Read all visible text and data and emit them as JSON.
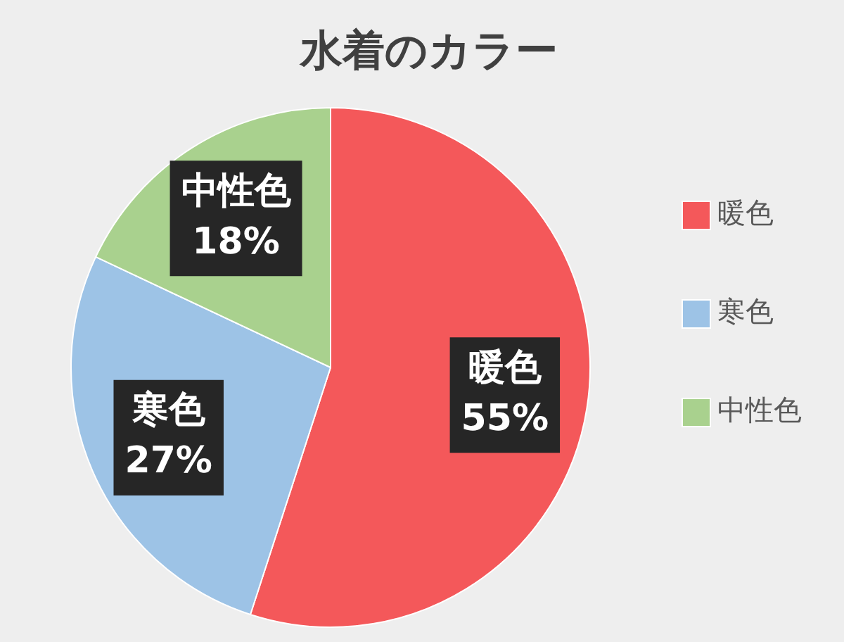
{
  "chart_data": {
    "type": "pie",
    "title": "水着のカラー",
    "categories": [
      "暖色",
      "寒色",
      "中性色"
    ],
    "values": [
      55,
      27,
      18
    ],
    "value_labels": [
      "55%",
      "27%",
      "18%"
    ],
    "colors": [
      "#f4585a",
      "#9dc3e6",
      "#a9d18e"
    ],
    "legend": "right"
  }
}
